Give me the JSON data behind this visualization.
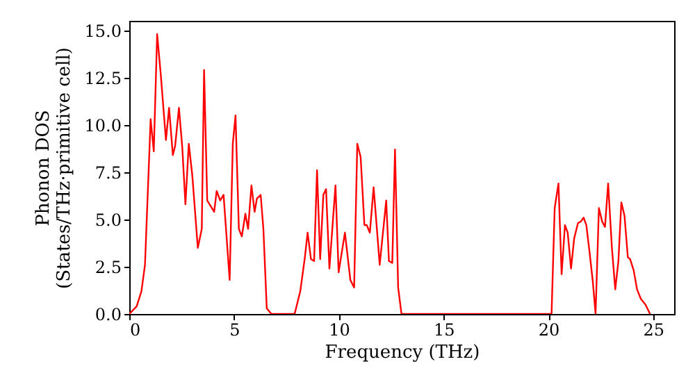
{
  "chart_data": {
    "type": "line",
    "xlabel": "Frequency (THz)",
    "ylabel": "Phonon DOS\n(States/THz·primitive cell)",
    "x": [
      0,
      0.35,
      0.58,
      0.75,
      1.02,
      1.17,
      1.33,
      1.5,
      1.75,
      1.9,
      2.08,
      2.19,
      2.37,
      2.53,
      2.68,
      2.84,
      3.01,
      3.27,
      3.46,
      3.57,
      3.72,
      4.05,
      4.17,
      4.34,
      4.5,
      4.79,
      4.94,
      5.07,
      5.23,
      5.37,
      5.54,
      5.67,
      5.83,
      5.98,
      6.09,
      6.27,
      6.4,
      6.56,
      6.78,
      7.89,
      8.16,
      8.38,
      8.51,
      8.67,
      8.82,
      8.96,
      9.11,
      9.26,
      9.39,
      9.55,
      9.84,
      9.99,
      10.29,
      10.55,
      10.73,
      10.88,
      11.04,
      11.22,
      11.33,
      11.48,
      11.66,
      11.95,
      12.26,
      12.39,
      12.55,
      12.68,
      12.83,
      12.99,
      20.15,
      20.3,
      20.48,
      20.63,
      20.79,
      20.92,
      21.08,
      21.23,
      21.41,
      21.56,
      21.68,
      21.81,
      21.96,
      22.12,
      22.25,
      22.41,
      22.56,
      22.7,
      22.85,
      23.03,
      23.19,
      23.34,
      23.48,
      23.63,
      23.79,
      23.9,
      24.07,
      24.23,
      24.41,
      24.63,
      24.85
    ],
    "series": [
      {
        "color": "#ff0000",
        "values": [
          0,
          0.4,
          1.2,
          2.6,
          10.3,
          8.6,
          14.8,
          12.7,
          9.2,
          10.9,
          8.4,
          8.9,
          10.9,
          8.8,
          5.8,
          9.0,
          7.3,
          3.5,
          4.5,
          12.9,
          6.0,
          5.4,
          6.5,
          6.0,
          6.3,
          1.8,
          9.0,
          10.5,
          4.5,
          4.1,
          5.3,
          4.5,
          6.8,
          5.4,
          6.1,
          6.3,
          4.5,
          0.3,
          0,
          0,
          1.2,
          3.0,
          4.3,
          2.9,
          2.8,
          7.6,
          2.9,
          6.3,
          6.6,
          2.4,
          6.8,
          2.2,
          4.3,
          1.8,
          1.4,
          9.0,
          8.3,
          4.7,
          4.7,
          4.3,
          6.7,
          2.6,
          6.0,
          2.8,
          2.7,
          8.7,
          1.4,
          0,
          0,
          5.6,
          6.9,
          2.1,
          4.7,
          4.3,
          2.4,
          4.0,
          4.8,
          4.9,
          5.1,
          4.7,
          3.3,
          1.7,
          0,
          5.6,
          4.9,
          4.6,
          6.9,
          3.5,
          1.3,
          2.8,
          5.9,
          5.2,
          3.0,
          2.9,
          2.3,
          1.3,
          0.8,
          0.5,
          0
        ]
      }
    ],
    "xlim": [
      0,
      26
    ],
    "xticks": [
      0,
      5,
      10,
      15,
      20,
      25
    ],
    "ylim": [
      0,
      15.5
    ],
    "yticks": [
      {
        "value": 0,
        "label": "0.0"
      },
      {
        "value": 2.5,
        "label": "2.5"
      },
      {
        "value": 5,
        "label": "5.0"
      },
      {
        "value": 7.5,
        "label": "7.5"
      },
      {
        "value": 10,
        "label": "10.0"
      },
      {
        "value": 12.5,
        "label": "12.5"
      },
      {
        "value": 15,
        "label": "15.0"
      }
    ],
    "grid": false,
    "line_style": "solid",
    "marker": "none"
  }
}
